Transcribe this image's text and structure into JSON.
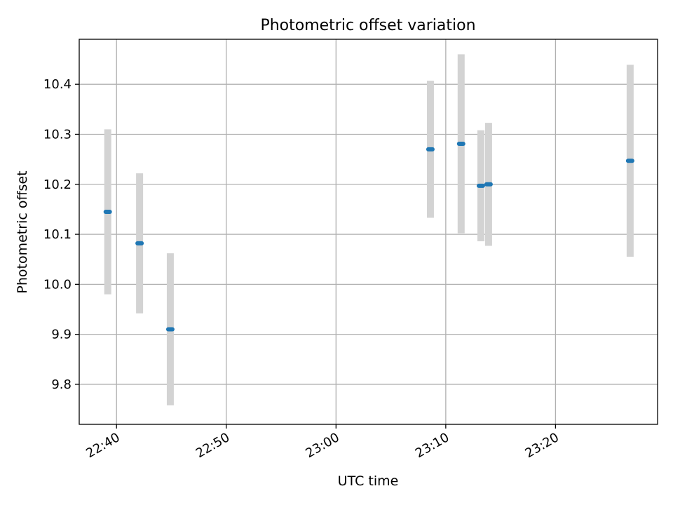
{
  "chart_data": {
    "type": "scatter",
    "title": "Photometric offset variation",
    "xlabel": "UTC time",
    "ylabel": "Photometric offset",
    "x_tick_labels": [
      "22:40",
      "22:50",
      "23:00",
      "23:10",
      "23:20"
    ],
    "y_tick_labels": [
      "9.8",
      "9.9",
      "10.0",
      "10.1",
      "10.2",
      "10.3",
      "10.4"
    ],
    "x_ticks_minutes": [
      40,
      50,
      60,
      70,
      80
    ],
    "y_ticks": [
      9.8,
      9.9,
      10.0,
      10.1,
      10.2,
      10.3,
      10.4
    ],
    "xlim_minutes": [
      36.6,
      89.3
    ],
    "ylim": [
      9.72,
      10.49
    ],
    "x_axis_note": "minutes after 22:00 UTC",
    "grid": true,
    "marker_color": "#1f77b4",
    "errorbar_color": "#d3d3d3",
    "points": [
      {
        "x": 39.2,
        "y": 10.145,
        "err": 0.165
      },
      {
        "x": 42.1,
        "y": 10.082,
        "err": 0.14
      },
      {
        "x": 44.9,
        "y": 9.91,
        "err": 0.152
      },
      {
        "x": 68.6,
        "y": 10.27,
        "err": 0.137
      },
      {
        "x": 71.4,
        "y": 10.281,
        "err": 0.179
      },
      {
        "x": 73.2,
        "y": 10.197,
        "err": 0.111
      },
      {
        "x": 73.9,
        "y": 10.2,
        "err": 0.123
      },
      {
        "x": 86.8,
        "y": 10.247,
        "err": 0.192
      }
    ]
  }
}
